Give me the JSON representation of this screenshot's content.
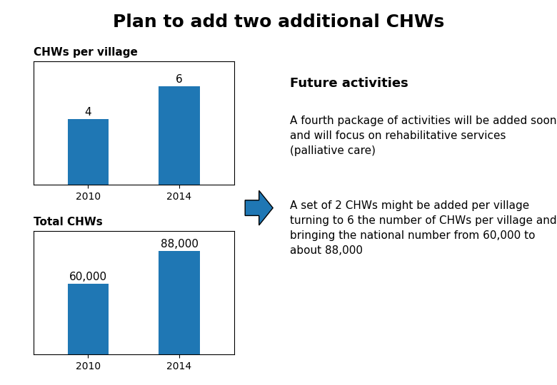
{
  "title": "Plan to add two additional CHWs",
  "annotations": [
    "Future activities",
    "A fourth package of activities will be added soon and will focus on rehabilitative services (palliative care)",
    "A set of 2 CHWs might be added per village turning to 6 the number of CHWs per village and bringing the national number from 60,000 to about 88,000"
  ],
  "chart_data": [
    {
      "type": "bar",
      "title": "CHWs per village",
      "categories": [
        "2010",
        "2014"
      ],
      "values": [
        4,
        6
      ],
      "ylim": [
        0,
        7.5
      ],
      "tick_labels": "x",
      "data_labels": true
    },
    {
      "type": "bar",
      "title": "Total CHWs",
      "categories": [
        "2010",
        "2014"
      ],
      "values": [
        60000,
        88000
      ],
      "value_labels": [
        "60,000",
        "88,000"
      ],
      "ylim": [
        0,
        105000
      ],
      "tick_labels": "x",
      "data_labels": true
    }
  ]
}
